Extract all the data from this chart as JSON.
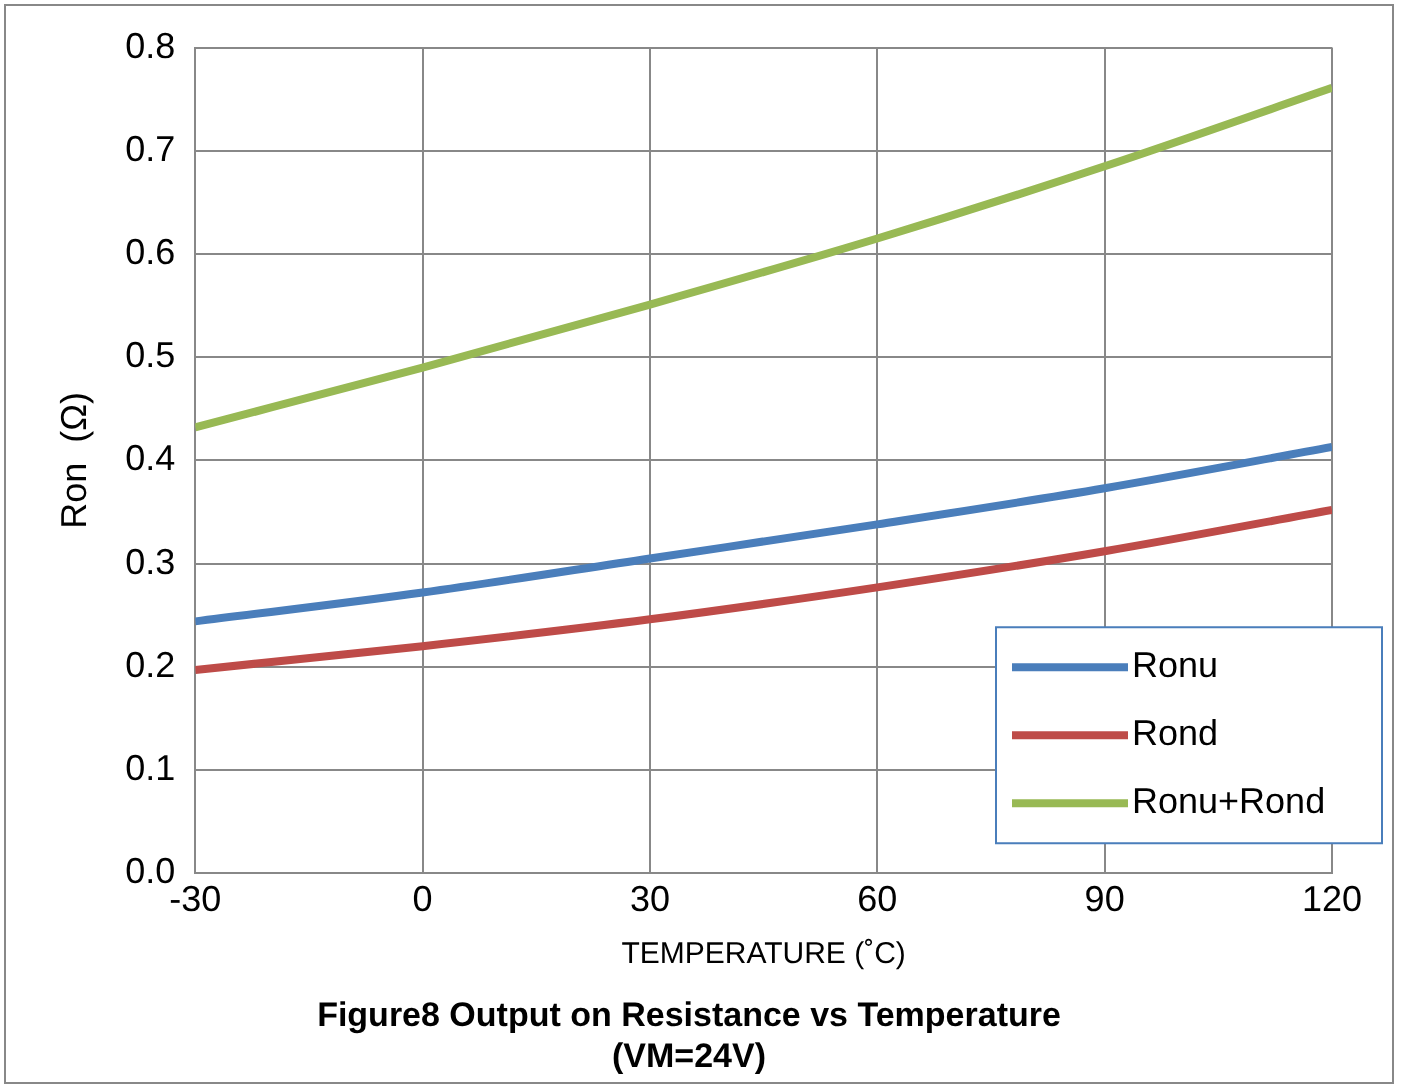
{
  "chart_data": {
    "type": "line",
    "title": "Figure8 Output on Resistance vs Temperature\n(VM=24V)",
    "xlabel": "TEMPERATURE (˚C)",
    "ylabel": "Ron  (Ω)",
    "x": [
      -30,
      0,
      30,
      60,
      90,
      120
    ],
    "series": [
      {
        "name": "Ronu",
        "color": "#4a7ebb",
        "values": [
          0.244,
          0.272,
          0.305,
          0.338,
          0.373,
          0.413
        ]
      },
      {
        "name": "Rond",
        "color": "#be4b48",
        "values": [
          0.197,
          0.22,
          0.246,
          0.277,
          0.312,
          0.352
        ]
      },
      {
        "name": "Ronu+Rond",
        "color": "#98b954",
        "values": [
          0.432,
          0.49,
          0.551,
          0.615,
          0.685,
          0.761
        ]
      }
    ],
    "xlim": [
      -30,
      120
    ],
    "xticks": [
      -30,
      0,
      30,
      60,
      90,
      120
    ],
    "ylim": [
      0,
      0.8
    ],
    "yticks": [
      {
        "value": 0,
        "label": "0.0"
      },
      {
        "value": 0.1,
        "label": "0.1"
      },
      {
        "value": 0.2,
        "label": "0.2"
      },
      {
        "value": 0.3,
        "label": "0.3"
      },
      {
        "value": 0.4,
        "label": "0.4"
      },
      {
        "value": 0.5,
        "label": "0.5"
      },
      {
        "value": 0.6,
        "label": "0.6"
      },
      {
        "value": 0.7,
        "label": "0.7"
      },
      {
        "value": 0.8,
        "label": "0.8"
      }
    ],
    "grid": true,
    "legend": "bottom right",
    "marker": "none",
    "line_style": "solid"
  }
}
